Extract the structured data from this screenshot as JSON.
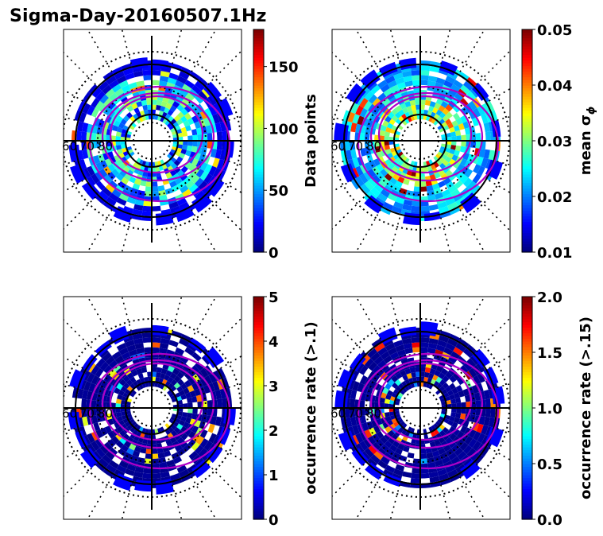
{
  "title": "Sigma-Day-20160507.1Hz",
  "chart_data": [
    {
      "type": "polar_heatmap",
      "colormap": "jet",
      "lat_ring_labels": [
        "60",
        "70",
        "80"
      ],
      "colorbar": {
        "label": "Data points",
        "ticks": [
          "0",
          "50",
          "100",
          "150"
        ],
        "range": [
          0,
          180
        ]
      },
      "field": {
        "base": 60,
        "var": 60,
        "pattern": "uniform",
        "hot_fraction": 0.04,
        "hot_value": 120
      },
      "grid": "on",
      "legend": "none"
    },
    {
      "type": "polar_heatmap",
      "colormap": "jet",
      "lat_ring_labels": [
        "60",
        "70",
        "80"
      ],
      "colorbar": {
        "label": "mean σ",
        "label_sub": "ϕ",
        "ticks": [
          "0.01",
          "0.02",
          "0.03",
          "0.04",
          "0.05"
        ],
        "range": [
          0.01,
          0.05
        ]
      },
      "field": {
        "base": 0.018,
        "var": 0.008,
        "pattern": "inner_hot",
        "hot_fraction": 0.08,
        "hot_value": 0.045
      },
      "grid": "on",
      "legend": "none"
    },
    {
      "type": "polar_heatmap",
      "colormap": "jet",
      "lat_ring_labels": [
        "60",
        "70",
        "80"
      ],
      "colorbar": {
        "label": "occurrence rate (>.1)",
        "ticks": [
          "0",
          "1",
          "2",
          "3",
          "4",
          "5"
        ],
        "range": [
          0,
          5
        ]
      },
      "field": {
        "base": 0.05,
        "var": 0.1,
        "pattern": "mostly_low",
        "hot_fraction": 0.05,
        "hot_value": 3.5
      },
      "grid": "on",
      "legend": "none"
    },
    {
      "type": "polar_heatmap",
      "colormap": "jet",
      "lat_ring_labels": [
        "60",
        "70",
        "80"
      ],
      "colorbar": {
        "label": "occurrence rate (>.15)",
        "ticks": [
          "0.0",
          "0.5",
          "1.0",
          "1.5",
          "2.0"
        ],
        "range": [
          0,
          2
        ]
      },
      "field": {
        "base": 0.02,
        "var": 0.05,
        "pattern": "mostly_low",
        "hot_fraction": 0.04,
        "hot_value": 1.6
      },
      "grid": "on",
      "legend": "none"
    }
  ]
}
